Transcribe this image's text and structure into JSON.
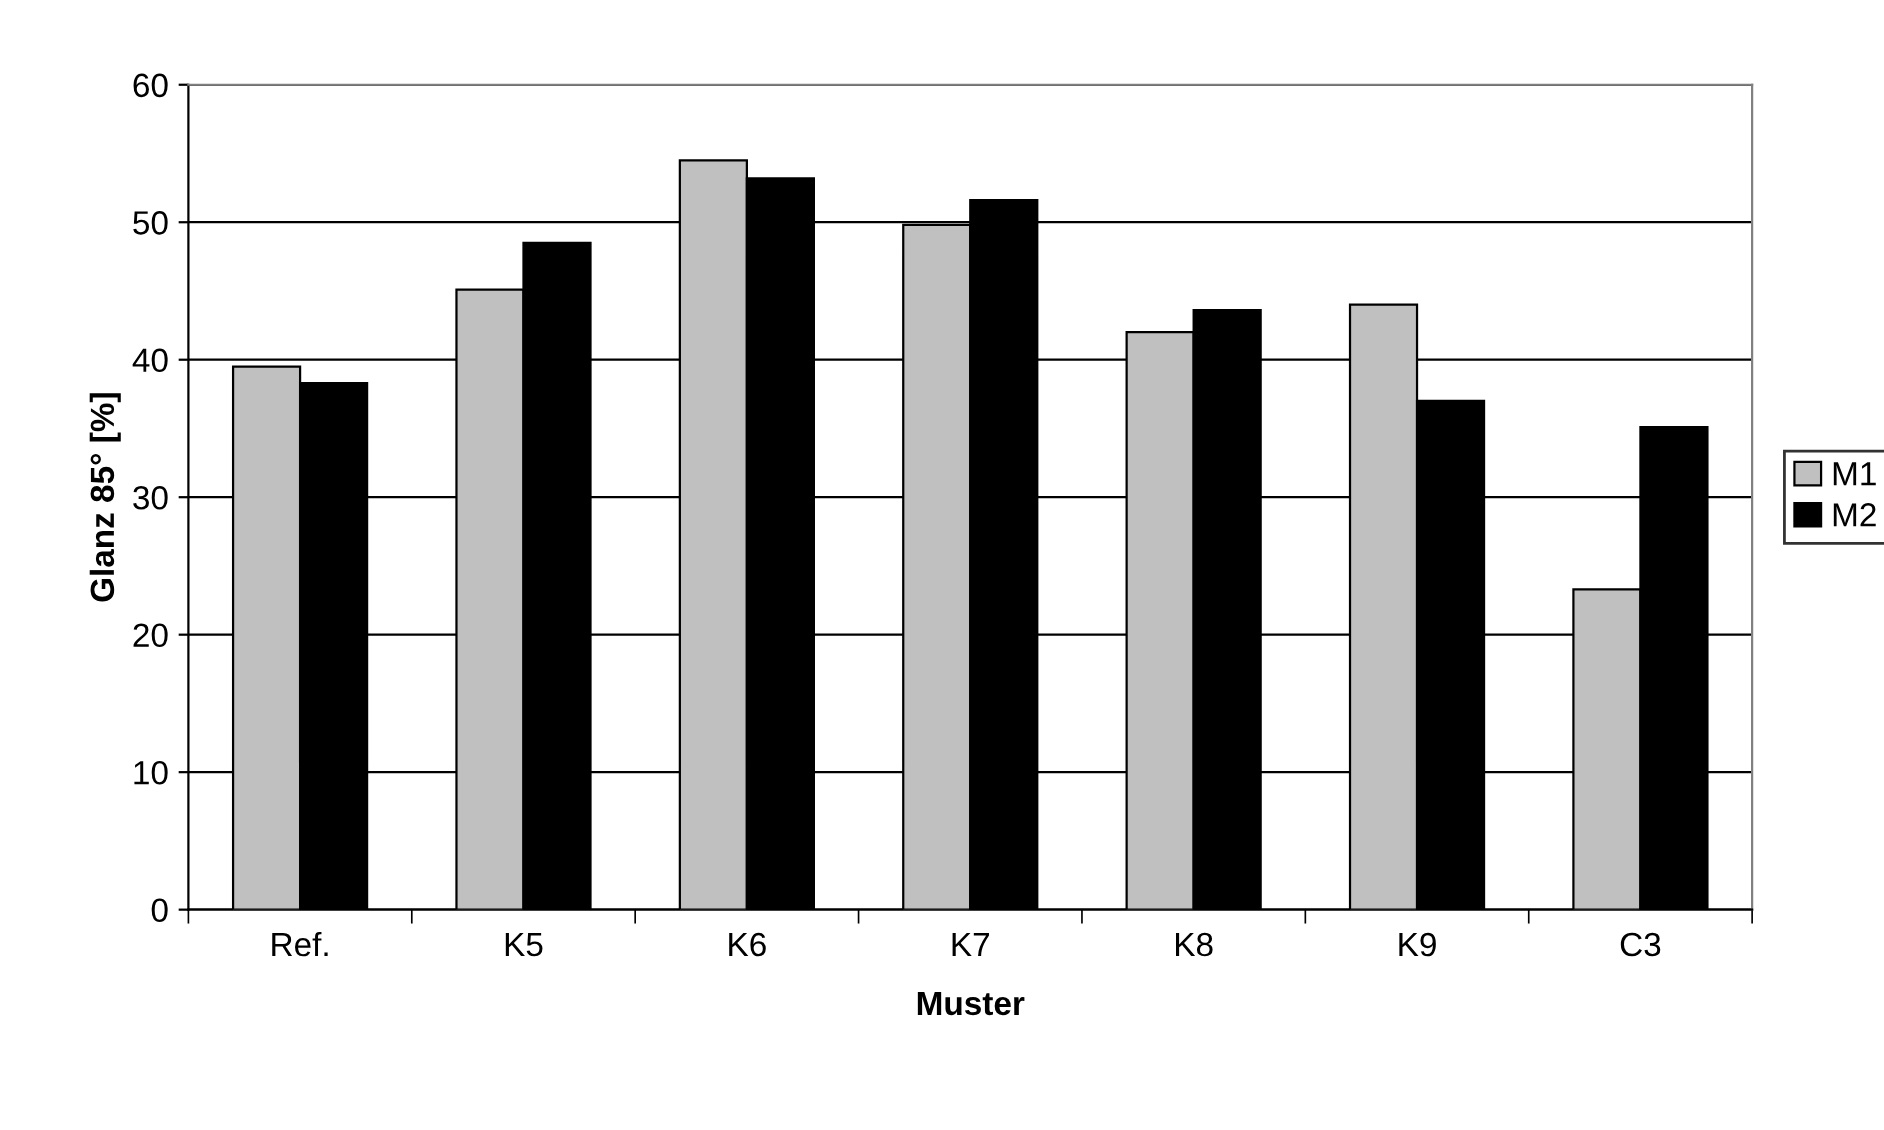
{
  "chart_data": {
    "type": "bar",
    "xlabel": "Muster",
    "ylabel": "Glanz 85° [%]",
    "categories": [
      "Ref.",
      "K5",
      "K6",
      "K7",
      "K8",
      "K9",
      "C3"
    ],
    "series": [
      {
        "name": "M1",
        "color": "#c0c0c0",
        "values": [
          39.5,
          45.1,
          54.5,
          49.8,
          42.0,
          44.0,
          23.3
        ]
      },
      {
        "name": "M2",
        "color": "#000000",
        "values": [
          38.3,
          48.5,
          53.2,
          51.6,
          43.6,
          37.0,
          35.1
        ]
      }
    ],
    "ylim": [
      0,
      60
    ],
    "yticks": [
      0,
      10,
      20,
      30,
      40,
      50,
      60
    ],
    "grid": "y",
    "legend": "right"
  }
}
